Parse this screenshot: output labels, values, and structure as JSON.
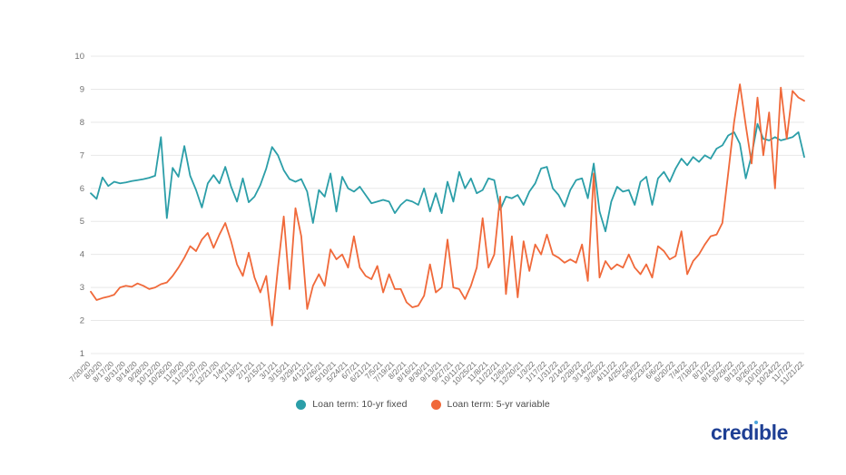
{
  "page": {
    "background": "#ffffff"
  },
  "chart_data": {
    "type": "line",
    "title": "",
    "xlabel": "",
    "ylabel": "",
    "grid": true,
    "gridline_color": "#e8e8e8",
    "axis_label_color": "#6f6f6f",
    "legend_position": "bottom-center",
    "y_axis": {
      "min": 1,
      "max": 10,
      "ticks": [
        1,
        2,
        3,
        4,
        5,
        6,
        7,
        8,
        9,
        10
      ]
    },
    "points_per_label": 2,
    "x_tick_labels": [
      "7/20/20",
      "8/3/20",
      "8/17/20",
      "8/31/20",
      "9/14/20",
      "9/28/20",
      "10/12/20",
      "10/26/20",
      "11/9/20",
      "11/23/20",
      "12/7/20",
      "12/21/20",
      "1/4/21",
      "1/18/21",
      "2/1/21",
      "2/15/21",
      "3/1/21",
      "3/15/21",
      "3/29/21",
      "4/12/21",
      "4/26/21",
      "5/10/21",
      "5/24/21",
      "6/7/21",
      "6/21/21",
      "7/5/21",
      "7/19/21",
      "8/2/21",
      "8/16/21",
      "8/30/21",
      "9/13/21",
      "9/27/21",
      "10/11/21",
      "10/25/21",
      "11/8/21",
      "11/22/21",
      "12/6/21",
      "12/20/21",
      "1/3/22",
      "1/17/22",
      "1/31/22",
      "2/14/22",
      "2/28/22",
      "3/14/22",
      "3/28/22",
      "4/11/22",
      "4/25/22",
      "5/9/22",
      "5/23/22",
      "6/6/22",
      "6/20/22",
      "7/4/22",
      "7/18/22",
      "8/1/22",
      "8/15/22",
      "8/29/22",
      "9/12/22",
      "9/26/22",
      "10/10/22",
      "10/24/22",
      "11/7/22",
      "11/21/22"
    ],
    "series": [
      {
        "name": "Loan term: 10-yr fixed",
        "color": "#2B9EA8",
        "values": [
          5.85,
          5.68,
          6.33,
          6.07,
          6.2,
          6.15,
          6.18,
          6.22,
          6.25,
          6.28,
          6.32,
          6.38,
          7.55,
          5.1,
          6.62,
          6.35,
          7.28,
          6.38,
          5.95,
          5.42,
          6.15,
          6.4,
          6.15,
          6.65,
          6.05,
          5.6,
          6.3,
          5.58,
          5.75,
          6.1,
          6.6,
          7.25,
          7.0,
          6.55,
          6.28,
          6.2,
          6.28,
          5.9,
          4.95,
          5.95,
          5.75,
          6.45,
          5.3,
          6.35,
          6.0,
          5.9,
          6.05,
          5.8,
          5.55,
          5.6,
          5.65,
          5.6,
          5.25,
          5.5,
          5.65,
          5.6,
          5.5,
          6.0,
          5.3,
          5.85,
          5.25,
          6.2,
          5.6,
          6.5,
          6.0,
          6.3,
          5.85,
          5.95,
          6.3,
          6.25,
          5.35,
          5.75,
          5.7,
          5.8,
          5.5,
          5.9,
          6.15,
          6.6,
          6.65,
          6.0,
          5.8,
          5.45,
          5.95,
          6.25,
          6.3,
          5.7,
          6.75,
          5.3,
          4.7,
          5.6,
          6.05,
          5.9,
          5.95,
          5.5,
          6.2,
          6.35,
          5.5,
          6.3,
          6.5,
          6.2,
          6.6,
          6.9,
          6.7,
          6.95,
          6.8,
          7.0,
          6.9,
          7.2,
          7.3,
          7.6,
          7.7,
          7.35,
          6.3,
          7.0,
          7.95,
          7.5,
          7.45,
          7.55,
          7.45,
          7.5,
          7.55,
          7.7,
          6.95
        ]
      },
      {
        "name": "Loan term: 5-yr variable",
        "color": "#F0693A",
        "values": [
          2.87,
          2.62,
          2.68,
          2.72,
          2.78,
          3.0,
          3.05,
          3.02,
          3.12,
          3.05,
          2.95,
          3.0,
          3.1,
          3.15,
          3.35,
          3.6,
          3.9,
          4.25,
          4.1,
          4.45,
          4.65,
          4.2,
          4.6,
          4.95,
          4.4,
          3.7,
          3.35,
          4.05,
          3.3,
          2.85,
          3.35,
          1.85,
          3.6,
          5.15,
          2.95,
          5.4,
          4.55,
          2.35,
          3.05,
          3.4,
          3.05,
          4.15,
          3.85,
          4.0,
          3.6,
          4.55,
          3.6,
          3.35,
          3.25,
          3.65,
          2.85,
          3.4,
          2.95,
          2.95,
          2.55,
          2.4,
          2.45,
          2.75,
          3.7,
          2.85,
          3.0,
          4.45,
          3.0,
          2.95,
          2.65,
          3.05,
          3.6,
          5.1,
          3.6,
          4.0,
          5.75,
          2.8,
          4.55,
          2.7,
          4.4,
          3.5,
          4.3,
          4.0,
          4.6,
          4.0,
          3.9,
          3.75,
          3.85,
          3.75,
          4.3,
          3.2,
          6.45,
          3.3,
          3.8,
          3.55,
          3.7,
          3.6,
          4.0,
          3.6,
          3.4,
          3.7,
          3.3,
          4.25,
          4.1,
          3.85,
          3.95,
          4.7,
          3.4,
          3.8,
          4.0,
          4.3,
          4.55,
          4.6,
          4.95,
          6.45,
          8.0,
          9.15,
          7.9,
          6.75,
          8.75,
          7.0,
          8.3,
          6.0,
          9.05,
          7.5,
          8.95,
          8.75,
          8.65
        ]
      }
    ]
  },
  "legend": {
    "items": [
      {
        "label": "Loan term: 10-yr fixed",
        "color": "#2B9EA8"
      },
      {
        "label": "Loan term: 5-yr variable",
        "color": "#F0693A"
      }
    ]
  },
  "branding": {
    "logo_text": "credible",
    "logo_prefix": "cred",
    "logo_i": "ı",
    "logo_suffix": "ble",
    "logo_color": "#1E3F94",
    "logo_dot_color": "#4BA3DB"
  }
}
